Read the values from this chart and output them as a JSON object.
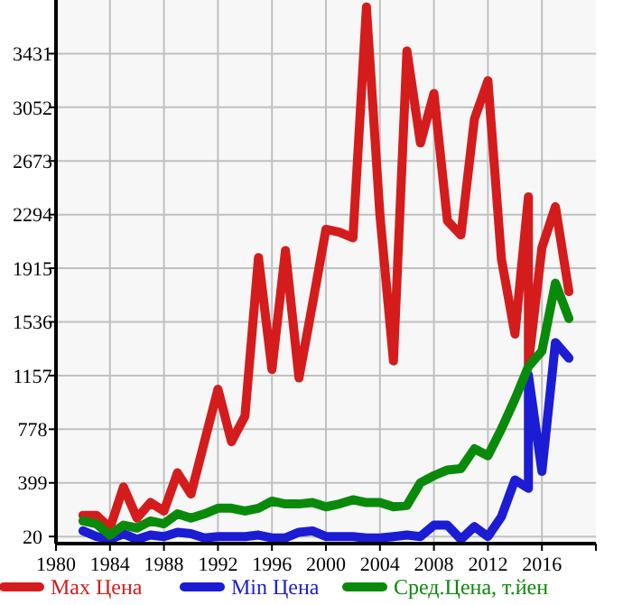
{
  "chart_data": {
    "type": "line",
    "xlim": [
      1980,
      2020
    ],
    "xticks": [
      1980,
      1984,
      1988,
      1992,
      1996,
      2000,
      2004,
      2008,
      2012,
      2016
    ],
    "ylim": [
      -30,
      3810
    ],
    "yticks": [
      20,
      399,
      778,
      1157,
      1536,
      1915,
      2294,
      2673,
      3052,
      3431
    ],
    "grid": true,
    "legend": "bottom",
    "marker": "none",
    "line_style": "solid",
    "series": [
      {
        "name": "Max Цена",
        "color": "#d41c1c",
        "x": [
          1982,
          1983,
          1984,
          1985,
          1986,
          1987,
          1988,
          1989,
          1990,
          1991,
          1992,
          1993,
          1994,
          1995,
          1996,
          1997,
          1998,
          1999,
          2000,
          2001,
          2002,
          2003,
          2004,
          2005,
          2006,
          2007,
          2008,
          2009,
          2010,
          2011,
          2012,
          2013,
          2014,
          2015,
          2015,
          2016,
          2017,
          2018
        ],
        "values": [
          170,
          170,
          80,
          370,
          150,
          260,
          200,
          470,
          320,
          690,
          1060,
          690,
          870,
          1990,
          1200,
          2040,
          1140,
          1660,
          2190,
          2170,
          2130,
          3760,
          2290,
          1260,
          3450,
          2800,
          3150,
          2250,
          2150,
          2970,
          3240,
          1980,
          1450,
          2420,
          1240,
          2060,
          2350,
          1750
        ]
      },
      {
        "name": "Min Цена",
        "color": "#1c1cd4",
        "x": [
          1982,
          1983,
          1984,
          1985,
          1986,
          1987,
          1988,
          1989,
          1990,
          1991,
          1992,
          1993,
          1994,
          1995,
          1996,
          1997,
          1998,
          1999,
          2000,
          2001,
          2002,
          2003,
          2004,
          2005,
          2006,
          2007,
          2008,
          2009,
          2010,
          2011,
          2012,
          2013,
          2014,
          2015,
          2015,
          2016,
          2017,
          2018
        ],
        "values": [
          60,
          20,
          0,
          40,
          0,
          30,
          20,
          50,
          40,
          10,
          20,
          20,
          20,
          30,
          10,
          10,
          50,
          60,
          20,
          20,
          20,
          10,
          10,
          20,
          30,
          20,
          100,
          100,
          0,
          90,
          20,
          160,
          420,
          360,
          1160,
          480,
          1390,
          1280
        ]
      },
      {
        "name": "Сред.Цена, т.йен",
        "color": "#0a8a0a",
        "x": [
          1982,
          1983,
          1984,
          1985,
          1986,
          1987,
          1988,
          1989,
          1990,
          1991,
          1992,
          1993,
          1994,
          1995,
          1996,
          1997,
          1998,
          1999,
          2000,
          2001,
          2002,
          2003,
          2004,
          2005,
          2006,
          2007,
          2008,
          2009,
          2010,
          2011,
          2012,
          2013,
          2014,
          2015,
          2016,
          2017,
          2018
        ],
        "values": [
          130,
          110,
          30,
          100,
          80,
          130,
          110,
          180,
          150,
          180,
          220,
          220,
          200,
          220,
          270,
          250,
          250,
          260,
          230,
          250,
          280,
          260,
          260,
          230,
          240,
          400,
          450,
          490,
          500,
          640,
          590,
          780,
          990,
          1220,
          1330,
          1810,
          1560
        ]
      }
    ]
  }
}
